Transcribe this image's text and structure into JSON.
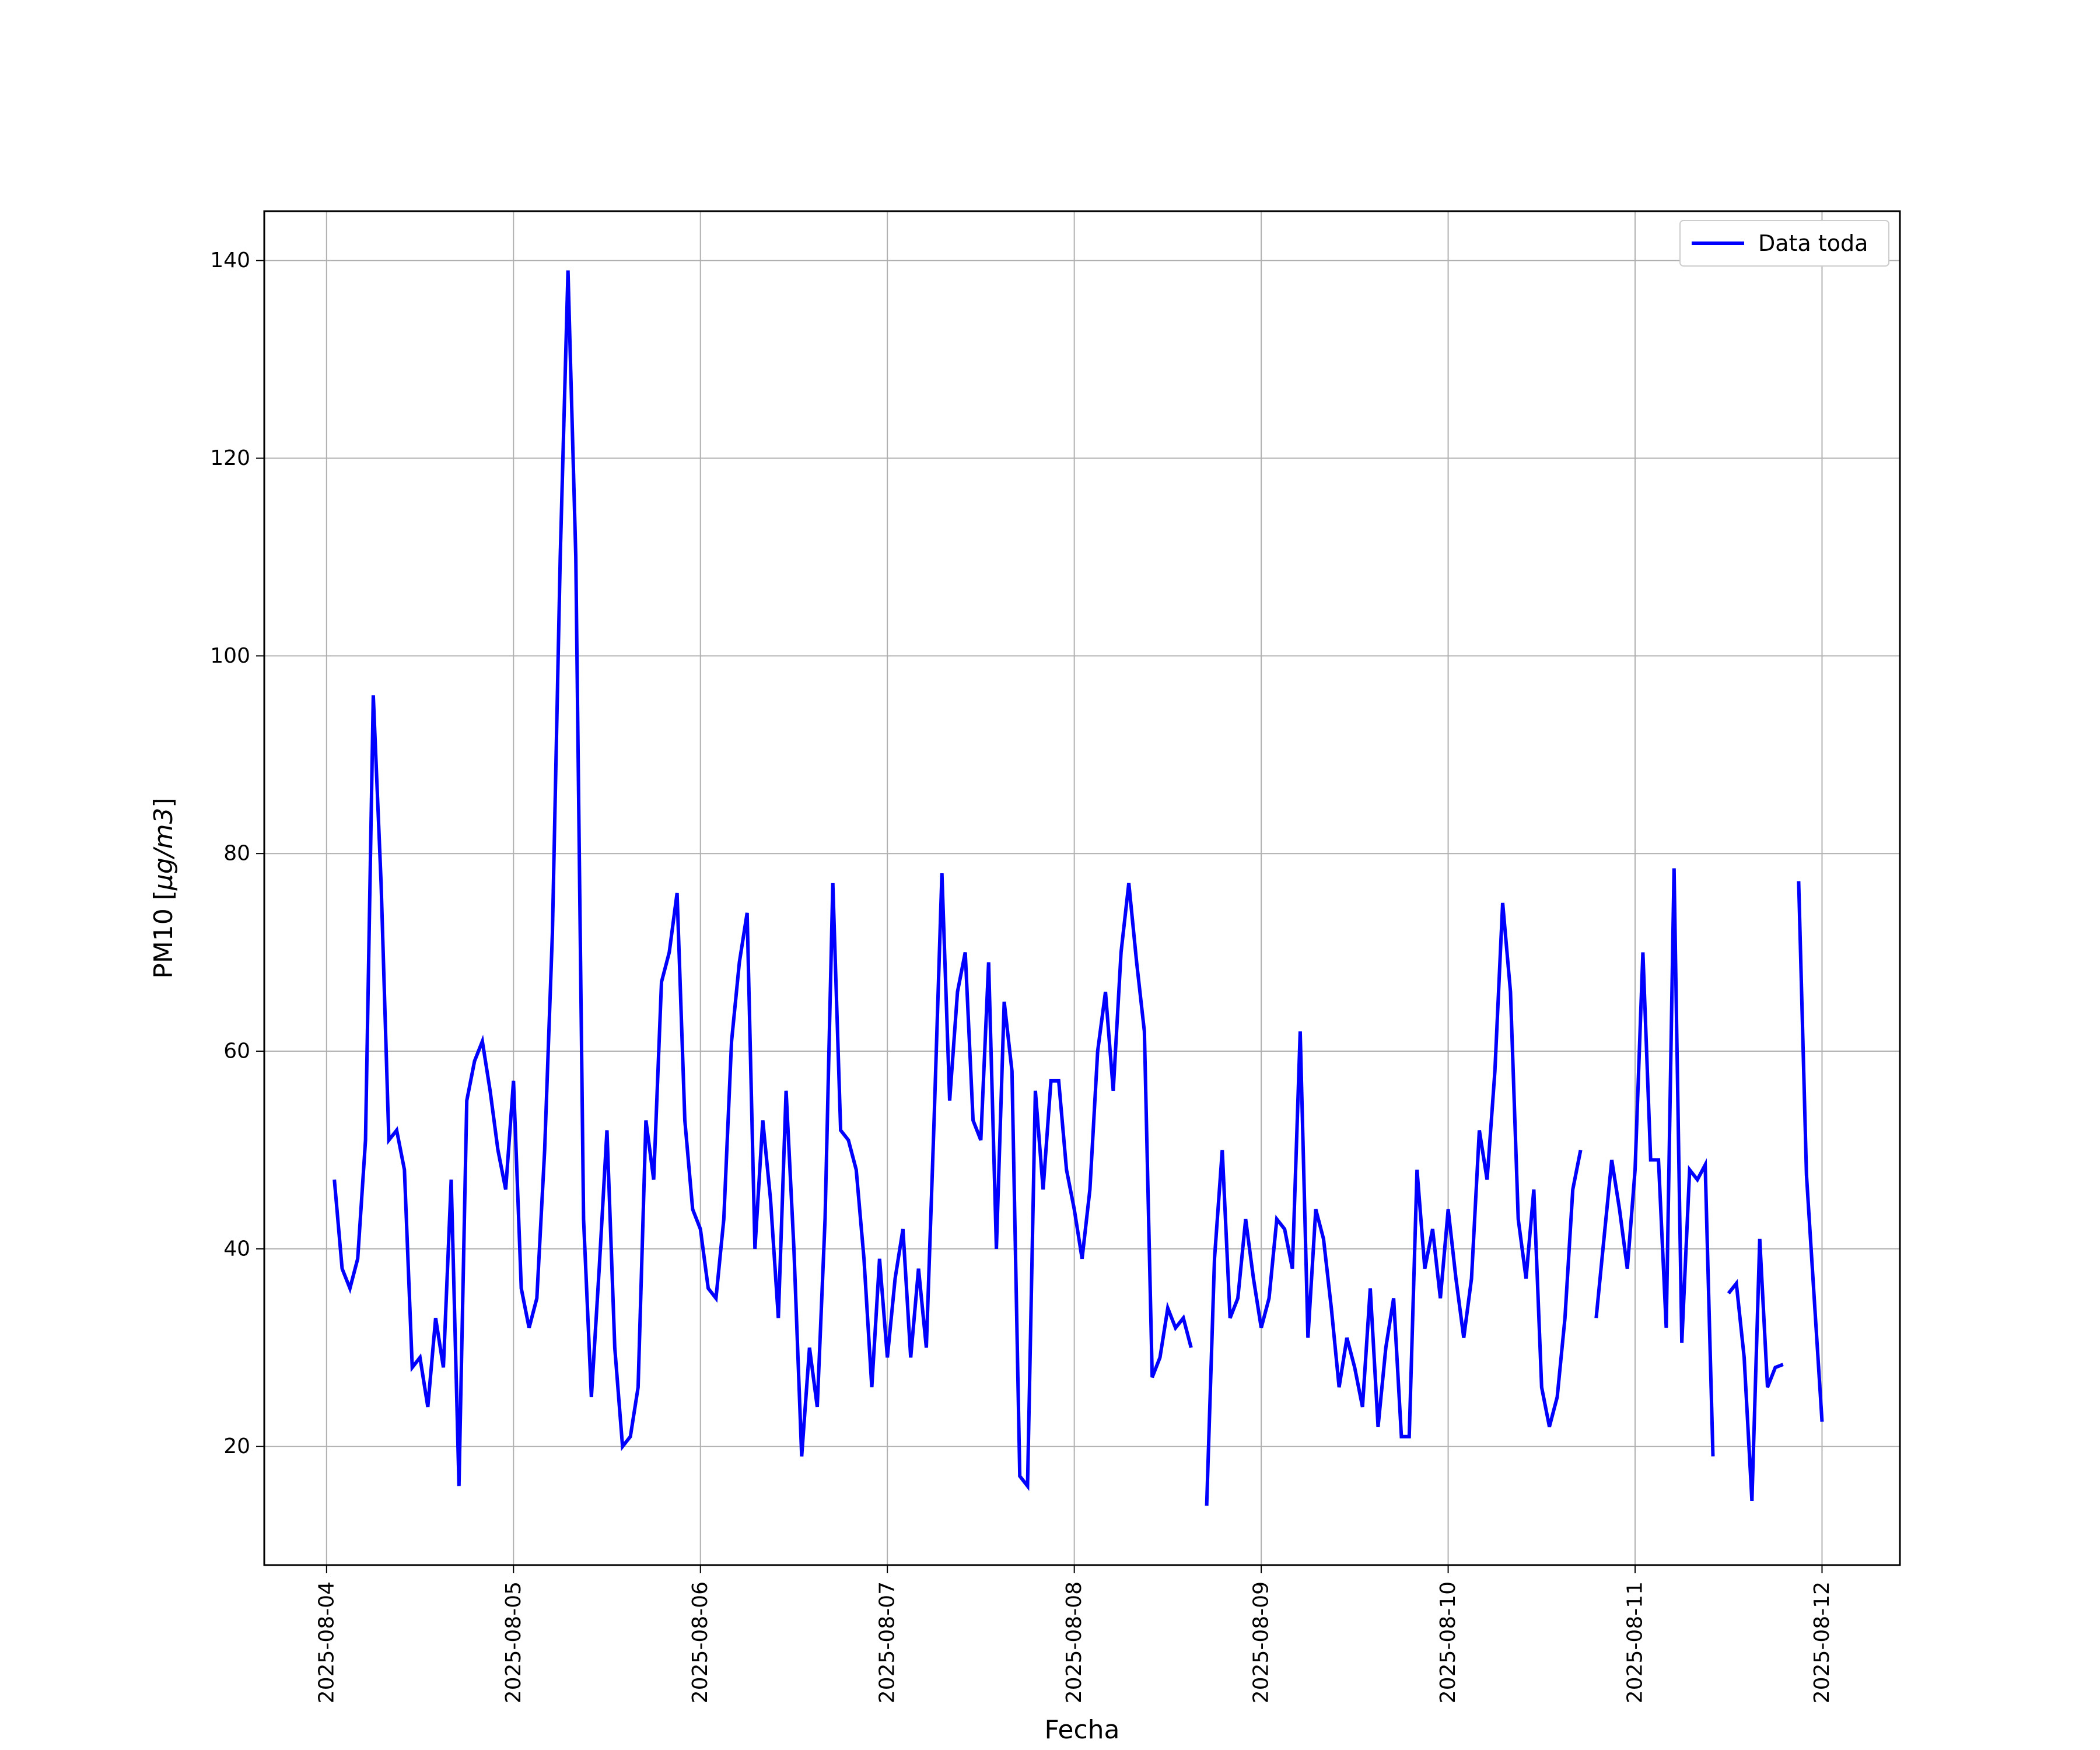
{
  "chart_data": {
    "type": "line",
    "xlabel": "Fecha",
    "ylabel": "PM10 [μg/m3]",
    "ylabel_parts": {
      "prefix": "PM10 [",
      "mu": "μ",
      "unit": "g/m3",
      "suffix": "]"
    },
    "xlim": [
      "2025-08-03T16:00",
      "2025-08-12T10:00"
    ],
    "ylim": [
      8,
      145
    ],
    "grid": true,
    "legend_position": "top-right",
    "color": "#0000ff",
    "x_ticks": [
      "2025-08-04",
      "2025-08-05",
      "2025-08-06",
      "2025-08-07",
      "2025-08-08",
      "2025-08-09",
      "2025-08-10",
      "2025-08-11",
      "2025-08-12"
    ],
    "y_ticks": [
      "20",
      "40",
      "60",
      "80",
      "100",
      "120",
      "140"
    ],
    "series": [
      {
        "name": "Data toda",
        "segments": [
          [
            [
              "2025-08-04T01:00",
              47
            ],
            [
              "2025-08-04T02:00",
              38
            ],
            [
              "2025-08-04T03:00",
              36
            ],
            [
              "2025-08-04T04:00",
              39
            ],
            [
              "2025-08-04T05:00",
              51
            ],
            [
              "2025-08-04T06:00",
              96
            ],
            [
              "2025-08-04T07:00",
              77
            ],
            [
              "2025-08-04T08:00",
              51
            ],
            [
              "2025-08-04T09:00",
              52
            ],
            [
              "2025-08-04T10:00",
              48
            ],
            [
              "2025-08-04T11:00",
              28
            ],
            [
              "2025-08-04T12:00",
              29
            ],
            [
              "2025-08-04T13:00",
              24
            ],
            [
              "2025-08-04T14:00",
              33
            ],
            [
              "2025-08-04T15:00",
              28
            ],
            [
              "2025-08-04T16:00",
              47
            ],
            [
              "2025-08-04T17:00",
              16
            ],
            [
              "2025-08-04T18:00",
              55
            ],
            [
              "2025-08-04T19:00",
              59
            ],
            [
              "2025-08-04T20:00",
              61
            ],
            [
              "2025-08-04T21:00",
              56
            ],
            [
              "2025-08-04T22:00",
              50
            ],
            [
              "2025-08-04T23:00",
              46
            ],
            [
              "2025-08-05T00:00",
              57
            ],
            [
              "2025-08-05T01:00",
              36
            ],
            [
              "2025-08-05T02:00",
              32
            ],
            [
              "2025-08-05T03:00",
              35
            ],
            [
              "2025-08-05T04:00",
              50
            ],
            [
              "2025-08-05T05:00",
              72
            ],
            [
              "2025-08-05T06:00",
              110
            ],
            [
              "2025-08-05T07:00",
              139
            ],
            [
              "2025-08-05T08:00",
              110
            ],
            [
              "2025-08-05T09:00",
              43
            ],
            [
              "2025-08-05T10:00",
              25
            ],
            [
              "2025-08-05T11:00",
              38
            ],
            [
              "2025-08-05T12:00",
              52
            ],
            [
              "2025-08-05T13:00",
              30
            ],
            [
              "2025-08-05T14:00",
              20
            ],
            [
              "2025-08-05T15:00",
              21
            ],
            [
              "2025-08-05T16:00",
              26
            ],
            [
              "2025-08-05T17:00",
              53
            ],
            [
              "2025-08-05T18:00",
              47
            ],
            [
              "2025-08-05T19:00",
              67
            ],
            [
              "2025-08-05T20:00",
              70
            ],
            [
              "2025-08-05T21:00",
              76
            ],
            [
              "2025-08-05T22:00",
              53
            ],
            [
              "2025-08-05T23:00",
              44
            ],
            [
              "2025-08-06T00:00",
              42
            ],
            [
              "2025-08-06T01:00",
              36
            ],
            [
              "2025-08-06T02:00",
              35
            ],
            [
              "2025-08-06T03:00",
              43
            ],
            [
              "2025-08-06T04:00",
              61
            ],
            [
              "2025-08-06T05:00",
              69
            ],
            [
              "2025-08-06T06:00",
              74
            ],
            [
              "2025-08-06T07:00",
              40
            ],
            [
              "2025-08-06T08:00",
              53
            ],
            [
              "2025-08-06T09:00",
              45
            ],
            [
              "2025-08-06T10:00",
              33
            ],
            [
              "2025-08-06T11:00",
              56
            ],
            [
              "2025-08-06T12:00",
              40
            ],
            [
              "2025-08-06T13:00",
              19
            ],
            [
              "2025-08-06T14:00",
              30
            ],
            [
              "2025-08-06T15:00",
              24
            ],
            [
              "2025-08-06T16:00",
              43
            ],
            [
              "2025-08-06T17:00",
              77
            ],
            [
              "2025-08-06T18:00",
              52
            ],
            [
              "2025-08-06T19:00",
              51
            ],
            [
              "2025-08-06T20:00",
              48
            ],
            [
              "2025-08-06T21:00",
              39
            ],
            [
              "2025-08-06T22:00",
              26
            ],
            [
              "2025-08-06T23:00",
              39
            ],
            [
              "2025-08-07T00:00",
              29
            ],
            [
              "2025-08-07T01:00",
              37
            ],
            [
              "2025-08-07T02:00",
              42
            ],
            [
              "2025-08-07T03:00",
              29
            ],
            [
              "2025-08-07T04:00",
              38
            ],
            [
              "2025-08-07T05:00",
              30
            ],
            [
              "2025-08-07T06:00",
              53
            ],
            [
              "2025-08-07T07:00",
              78
            ],
            [
              "2025-08-07T08:00",
              55
            ],
            [
              "2025-08-07T09:00",
              66
            ],
            [
              "2025-08-07T10:00",
              70
            ],
            [
              "2025-08-07T11:00",
              53
            ],
            [
              "2025-08-07T12:00",
              51
            ],
            [
              "2025-08-07T13:00",
              69
            ],
            [
              "2025-08-07T14:00",
              40
            ],
            [
              "2025-08-07T15:00",
              65
            ],
            [
              "2025-08-07T16:00",
              58
            ],
            [
              "2025-08-07T17:00",
              17
            ],
            [
              "2025-08-07T18:00",
              16
            ],
            [
              "2025-08-07T19:00",
              56
            ],
            [
              "2025-08-07T20:00",
              46
            ],
            [
              "2025-08-07T21:00",
              57
            ],
            [
              "2025-08-07T22:00",
              57
            ],
            [
              "2025-08-07T23:00",
              48
            ],
            [
              "2025-08-08T00:00",
              44
            ],
            [
              "2025-08-08T01:00",
              39
            ],
            [
              "2025-08-08T02:00",
              46
            ],
            [
              "2025-08-08T03:00",
              60
            ],
            [
              "2025-08-08T04:00",
              66
            ],
            [
              "2025-08-08T05:00",
              56
            ],
            [
              "2025-08-08T06:00",
              70
            ],
            [
              "2025-08-08T07:00",
              77
            ],
            [
              "2025-08-08T08:00",
              69
            ],
            [
              "2025-08-08T09:00",
              62
            ],
            [
              "2025-08-08T10:00",
              27
            ],
            [
              "2025-08-08T11:00",
              29
            ],
            [
              "2025-08-08T12:00",
              34
            ],
            [
              "2025-08-08T13:00",
              32
            ],
            [
              "2025-08-08T14:00",
              33
            ],
            [
              "2025-08-08T15:00",
              30
            ]
          ],
          [
            [
              "2025-08-08T17:00",
              14
            ],
            [
              "2025-08-08T18:00",
              39
            ],
            [
              "2025-08-08T19:00",
              50
            ],
            [
              "2025-08-08T20:00",
              33
            ],
            [
              "2025-08-08T21:00",
              35
            ],
            [
              "2025-08-08T22:00",
              43
            ],
            [
              "2025-08-08T23:00",
              37
            ],
            [
              "2025-08-09T00:00",
              32
            ],
            [
              "2025-08-09T01:00",
              35
            ],
            [
              "2025-08-09T02:00",
              43
            ],
            [
              "2025-08-09T03:00",
              42
            ],
            [
              "2025-08-09T04:00",
              38
            ],
            [
              "2025-08-09T05:00",
              62
            ],
            [
              "2025-08-09T06:00",
              31
            ],
            [
              "2025-08-09T07:00",
              44
            ],
            [
              "2025-08-09T08:00",
              41
            ],
            [
              "2025-08-09T09:00",
              34
            ],
            [
              "2025-08-09T10:00",
              26
            ],
            [
              "2025-08-09T11:00",
              31
            ],
            [
              "2025-08-09T12:00",
              28
            ],
            [
              "2025-08-09T13:00",
              24
            ],
            [
              "2025-08-09T14:00",
              36
            ],
            [
              "2025-08-09T15:00",
              22
            ],
            [
              "2025-08-09T16:00",
              30
            ],
            [
              "2025-08-09T17:00",
              35
            ],
            [
              "2025-08-09T18:00",
              21
            ],
            [
              "2025-08-09T19:00",
              21
            ],
            [
              "2025-08-09T20:00",
              48
            ],
            [
              "2025-08-09T21:00",
              38
            ],
            [
              "2025-08-09T22:00",
              42
            ],
            [
              "2025-08-09T23:00",
              35
            ],
            [
              "2025-08-10T00:00",
              44
            ],
            [
              "2025-08-10T01:00",
              37
            ],
            [
              "2025-08-10T02:00",
              31
            ],
            [
              "2025-08-10T03:00",
              37
            ],
            [
              "2025-08-10T04:00",
              52
            ],
            [
              "2025-08-10T05:00",
              47
            ],
            [
              "2025-08-10T06:00",
              58
            ],
            [
              "2025-08-10T07:00",
              75
            ],
            [
              "2025-08-10T08:00",
              66
            ],
            [
              "2025-08-10T09:00",
              43
            ],
            [
              "2025-08-10T10:00",
              37
            ],
            [
              "2025-08-10T11:00",
              46
            ],
            [
              "2025-08-10T12:00",
              26
            ],
            [
              "2025-08-10T13:00",
              22
            ],
            [
              "2025-08-10T14:00",
              25
            ],
            [
              "2025-08-10T15:00",
              33
            ],
            [
              "2025-08-10T16:00",
              46
            ],
            [
              "2025-08-10T17:00",
              50
            ]
          ],
          [
            [
              "2025-08-10T19:00",
              33
            ],
            [
              "2025-08-10T20:00",
              41
            ],
            [
              "2025-08-10T21:00",
              49
            ],
            [
              "2025-08-10T22:00",
              44
            ],
            [
              "2025-08-10T23:00",
              38
            ],
            [
              "2025-08-11T00:00",
              48
            ],
            [
              "2025-08-11T01:00",
              70
            ],
            [
              "2025-08-11T02:00",
              49
            ],
            [
              "2025-08-11T03:00",
              49
            ],
            [
              "2025-08-11T04:00",
              32
            ],
            [
              "2025-08-11T05:00",
              78.5
            ],
            [
              "2025-08-11T06:00",
              30.5
            ],
            [
              "2025-08-11T07:00",
              48
            ],
            [
              "2025-08-11T08:00",
              47
            ],
            [
              "2025-08-11T09:00",
              48.5
            ],
            [
              "2025-08-11T10:00",
              19
            ]
          ],
          [
            [
              "2025-08-11T12:00",
              35.5
            ],
            [
              "2025-08-11T13:00",
              36.5
            ],
            [
              "2025-08-11T14:00",
              29
            ],
            [
              "2025-08-11T15:00",
              14.5
            ],
            [
              "2025-08-11T16:00",
              41
            ],
            [
              "2025-08-11T17:00",
              26
            ],
            [
              "2025-08-11T18:00",
              28
            ],
            [
              "2025-08-11T19:00",
              28.3
            ]
          ],
          [
            [
              "2025-08-11T21:00",
              77.2
            ],
            [
              "2025-08-11T22:00",
              47.5
            ],
            [
              "2025-08-11T23:00",
              35
            ],
            [
              "2025-08-12T00:00",
              22.5
            ]
          ]
        ]
      }
    ]
  }
}
